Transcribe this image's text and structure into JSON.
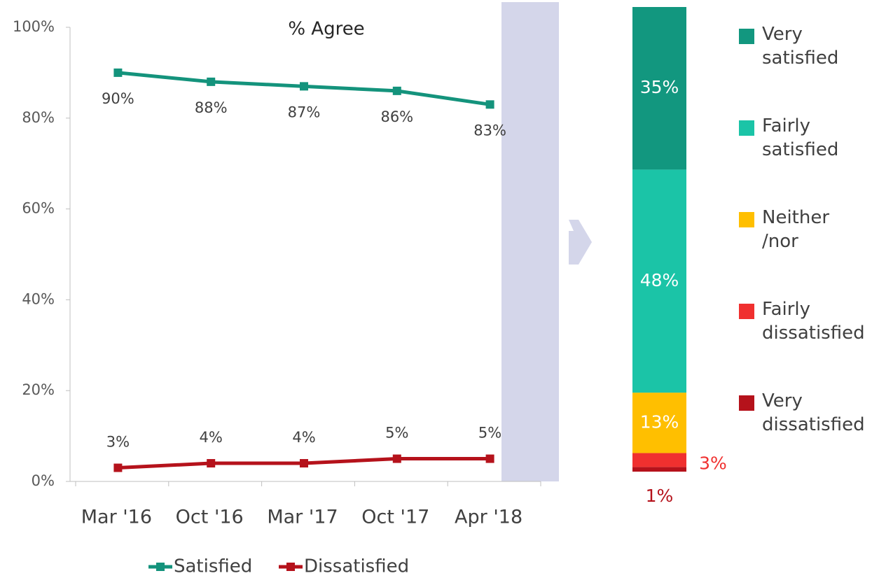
{
  "chart_data": [
    {
      "type": "line",
      "title": "% Agree",
      "categories": [
        "Mar '16",
        "Oct '16",
        "Mar '17",
        "Oct '17",
        "Apr '18"
      ],
      "series": [
        {
          "name": "Satisfied",
          "color": "#14937c",
          "values": [
            90,
            88,
            87,
            86,
            83
          ],
          "value_labels": [
            "90%",
            "88%",
            "87%",
            "86%",
            "83%"
          ]
        },
        {
          "name": "Dissatisfied",
          "color": "#b5121b",
          "values": [
            3,
            4,
            4,
            5,
            5
          ],
          "value_labels": [
            "3%",
            "4%",
            "4%",
            "5%",
            "5%"
          ]
        }
      ],
      "ylim": [
        0,
        100
      ],
      "yticks": [
        {
          "value": 0,
          "label": "0%"
        },
        {
          "value": 20,
          "label": "20%"
        },
        {
          "value": 40,
          "label": "40%"
        },
        {
          "value": 60,
          "label": "60%"
        },
        {
          "value": 80,
          "label": "80%"
        },
        {
          "value": 100,
          "label": "100%"
        }
      ],
      "legend": "bottom"
    },
    {
      "type": "bar",
      "stacked": true,
      "series": [
        {
          "name": "Very satisfied",
          "color": "#12977f",
          "values": [
            35
          ],
          "value_labels": [
            "35%"
          ]
        },
        {
          "name": "Fairly satisfied",
          "color": "#1bc4a7",
          "values": [
            48
          ],
          "value_labels": [
            "48%"
          ]
        },
        {
          "name": "Neither /nor",
          "color": "#ffbf00",
          "values": [
            13
          ],
          "value_labels": [
            "13%"
          ]
        },
        {
          "name": "Fairly dissatisfied",
          "color": "#f0302f",
          "values": [
            3
          ],
          "value_labels": [
            "3%"
          ]
        },
        {
          "name": "Very dissatisfied",
          "color": "#b5121b",
          "values": [
            1
          ],
          "value_labels": [
            "1%"
          ]
        }
      ],
      "legend": "right"
    }
  ]
}
